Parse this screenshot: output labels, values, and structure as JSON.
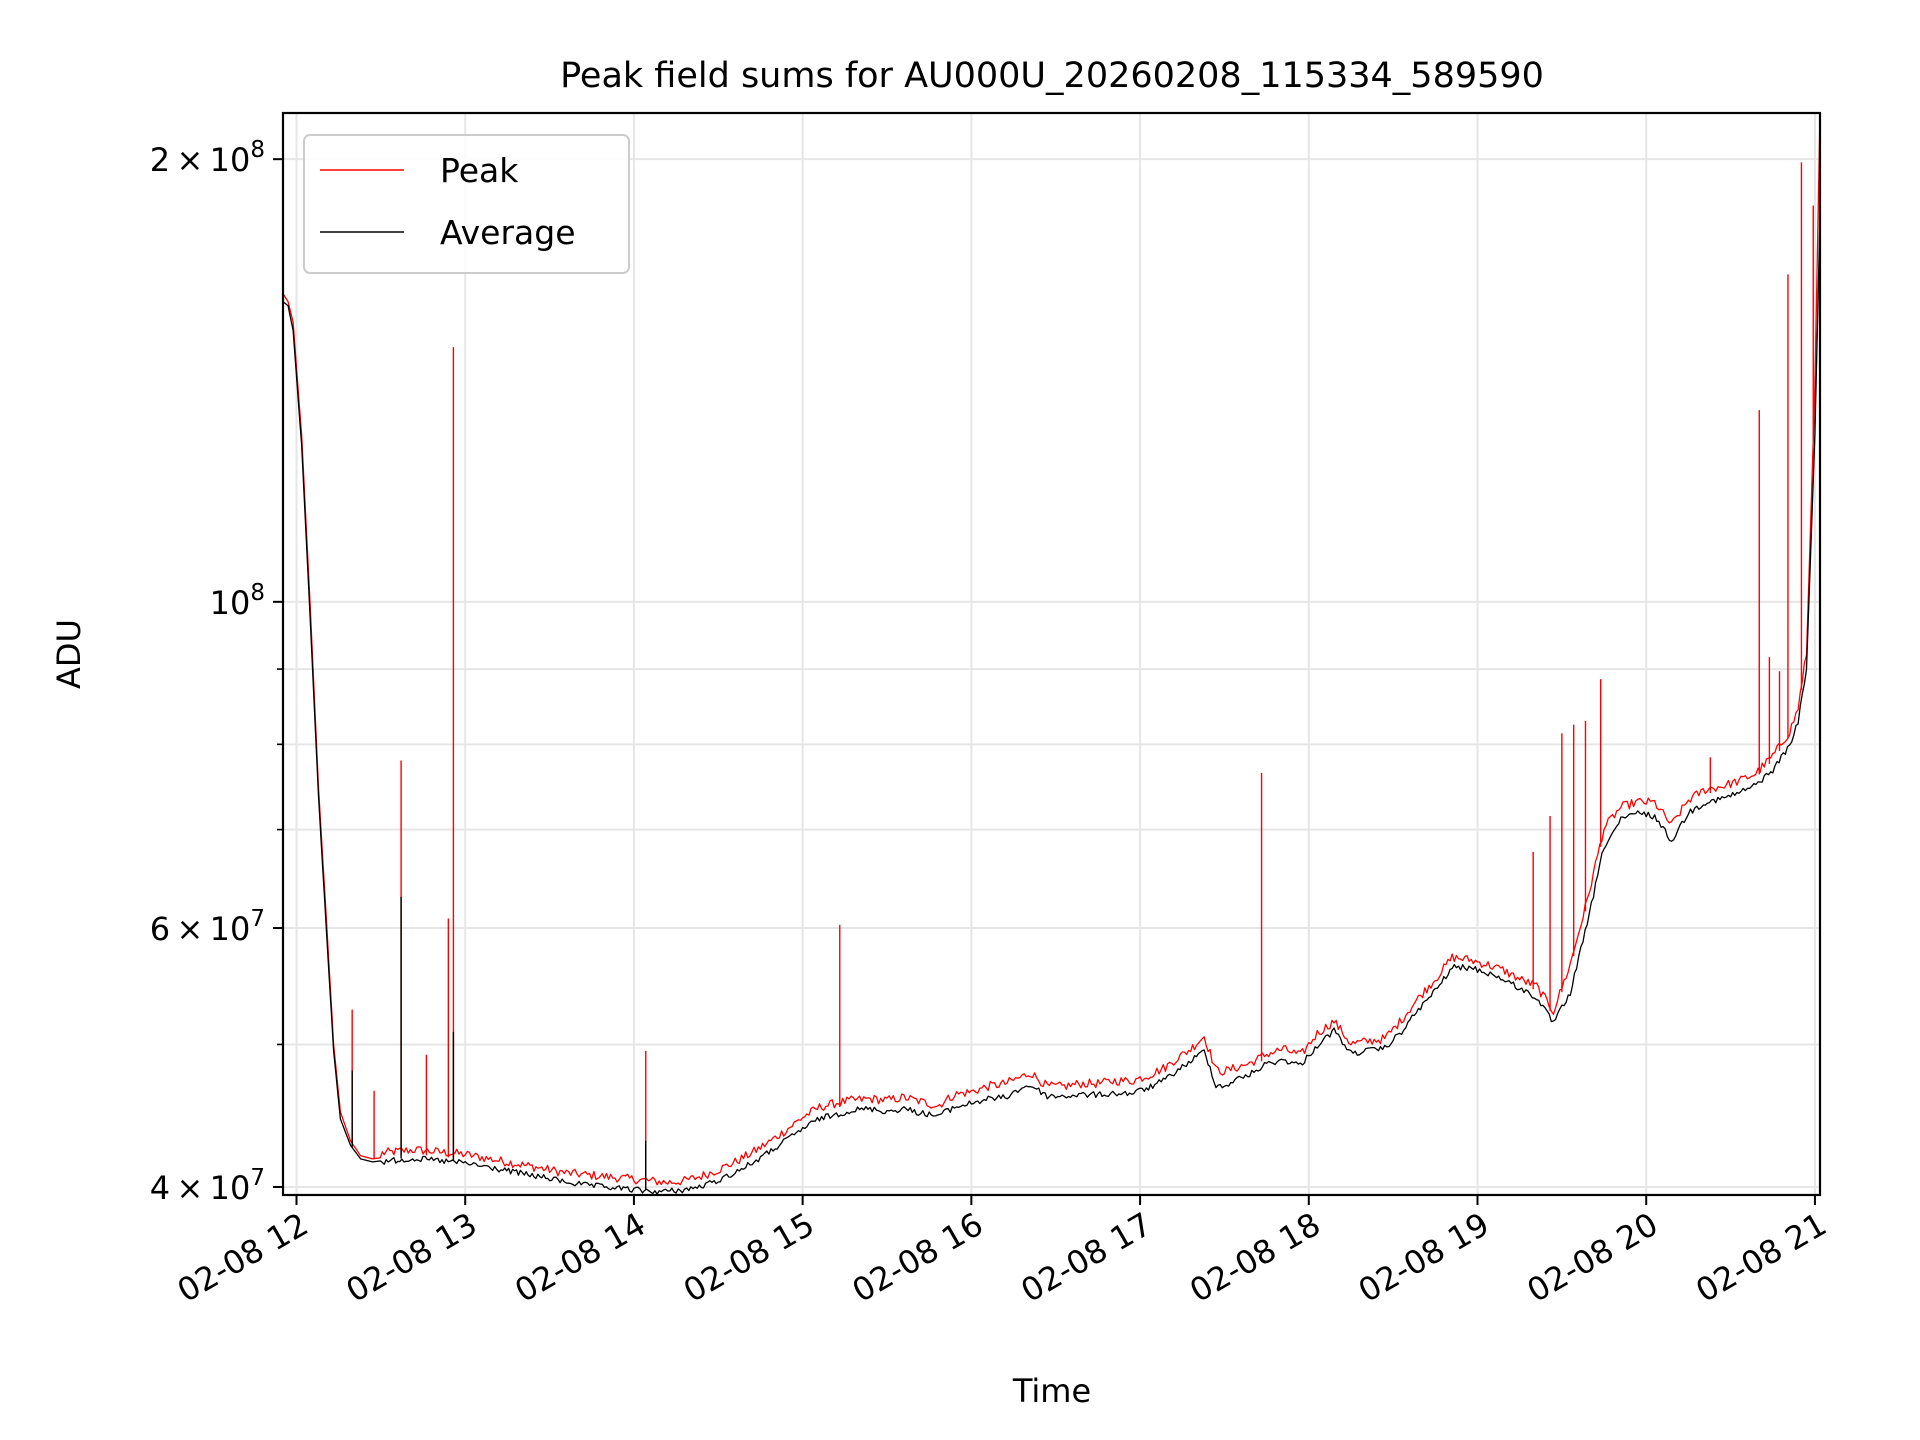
{
  "chart_data": {
    "type": "line",
    "title": "Peak field sums for AU000U_20260208_115334_589590",
    "xlabel": "Time",
    "ylabel": "ADU",
    "yscale": "log",
    "x_unit": "hours since 02-08 00:00",
    "xlim": [
      11.92,
      21.03
    ],
    "ylim": [
      39500000,
      215000000
    ],
    "grid": true,
    "legend_position": "top-left",
    "x_ticks": [
      {
        "value": 12,
        "label": "02-08 12"
      },
      {
        "value": 13,
        "label": "02-08 13"
      },
      {
        "value": 14,
        "label": "02-08 14"
      },
      {
        "value": 15,
        "label": "02-08 15"
      },
      {
        "value": 16,
        "label": "02-08 16"
      },
      {
        "value": 17,
        "label": "02-08 17"
      },
      {
        "value": 18,
        "label": "02-08 18"
      },
      {
        "value": 19,
        "label": "02-08 19"
      },
      {
        "value": 20,
        "label": "02-08 20"
      },
      {
        "value": 21,
        "label": "02-08 21"
      }
    ],
    "y_major_ticks": [
      {
        "value": 40000000,
        "mant": "4",
        "exp": "7"
      },
      {
        "value": 60000000,
        "mant": "6",
        "exp": "7"
      },
      {
        "value": 100000000,
        "mant": "",
        "exp": "8"
      },
      {
        "value": 200000000,
        "mant": "2",
        "exp": "8"
      }
    ],
    "y_minor_ticks": [
      50000000,
      70000000,
      80000000,
      90000000
    ],
    "series": [
      {
        "name": "Peak",
        "color": "#ff0000",
        "x": [
          11.92,
          11.95,
          11.98,
          12.03,
          12.08,
          12.13,
          12.18,
          12.22,
          12.26,
          12.32,
          12.38,
          12.45,
          12.52,
          12.6,
          12.7,
          12.8,
          12.9,
          13.0,
          13.1,
          13.2,
          13.35,
          13.5,
          13.6,
          13.7,
          13.8,
          13.9,
          14.0,
          14.1,
          14.2,
          14.3,
          14.4,
          14.5,
          14.6,
          14.7,
          14.8,
          14.9,
          15.0,
          15.1,
          15.2,
          15.3,
          15.4,
          15.5,
          15.6,
          15.7,
          15.8,
          15.9,
          16.0,
          16.1,
          16.2,
          16.3,
          16.35,
          16.45,
          16.55,
          16.65,
          16.75,
          16.85,
          16.95,
          17.05,
          17.15,
          17.2,
          17.3,
          17.38,
          17.45,
          17.5,
          17.55,
          17.65,
          17.75,
          17.85,
          17.95,
          18.05,
          18.15,
          18.25,
          18.35,
          18.45,
          18.55,
          18.65,
          18.75,
          18.85,
          18.95,
          19.05,
          19.15,
          19.25,
          19.35,
          19.45,
          19.55,
          19.65,
          19.75,
          19.85,
          19.95,
          20.05,
          20.15,
          20.25,
          20.35,
          20.45,
          20.55,
          20.65,
          20.75,
          20.85,
          20.9,
          20.95,
          21.0,
          21.03
        ],
        "y": [
          162000000,
          160000000,
          155000000,
          130000000,
          100000000,
          75000000,
          60000000,
          50000000,
          45000000,
          43000000,
          42000000,
          41800000,
          41900000,
          42000000,
          42100000,
          42000000,
          41900000,
          41800000,
          41600000,
          41400000,
          41100000,
          40800000,
          40600000,
          40500000,
          40400000,
          40300000,
          40200000,
          40100000,
          40000000,
          40100000,
          40400000,
          40800000,
          41300000,
          41900000,
          42600000,
          43400000,
          44300000,
          45000000,
          45300000,
          45500000,
          45600000,
          45500000,
          45700000,
          45400000,
          45100000,
          45900000,
          46100000,
          46500000,
          46700000,
          47200000,
          47500000,
          46500000,
          46500000,
          46700000,
          46700000,
          46900000,
          46900000,
          47300000,
          47900000,
          48400000,
          49300000,
          50300000,
          47700000,
          47600000,
          47800000,
          48200000,
          48900000,
          49300000,
          48800000,
          50500000,
          51500000,
          49700000,
          49900000,
          50100000,
          51600000,
          53400000,
          55000000,
          56900000,
          56700000,
          56300000,
          55800000,
          55000000,
          54400000,
          52300000,
          56300000,
          62200000,
          69700000,
          72000000,
          72600000,
          72500000,
          70000000,
          72800000,
          74000000,
          74400000,
          75000000,
          75900000,
          78000000,
          81000000,
          84000000,
          92000000,
          140000000,
          215000000
        ],
        "spikes": [
          {
            "x": 12.33,
            "y": 52800000
          },
          {
            "x": 12.46,
            "y": 46500000
          },
          {
            "x": 12.62,
            "y": 78000000
          },
          {
            "x": 12.77,
            "y": 49200000
          },
          {
            "x": 12.9,
            "y": 60900000
          },
          {
            "x": 12.93,
            "y": 149000000
          },
          {
            "x": 14.07,
            "y": 49500000
          },
          {
            "x": 15.22,
            "y": 60300000
          },
          {
            "x": 17.72,
            "y": 76500000
          },
          {
            "x": 19.33,
            "y": 67600000
          },
          {
            "x": 19.43,
            "y": 71500000
          },
          {
            "x": 19.5,
            "y": 81400000
          },
          {
            "x": 19.57,
            "y": 82500000
          },
          {
            "x": 19.64,
            "y": 83000000
          },
          {
            "x": 19.73,
            "y": 88600000
          },
          {
            "x": 20.38,
            "y": 78400000
          },
          {
            "x": 20.67,
            "y": 135000000
          },
          {
            "x": 20.73,
            "y": 91700000
          },
          {
            "x": 20.79,
            "y": 89700000
          },
          {
            "x": 20.84,
            "y": 167000000
          },
          {
            "x": 20.92,
            "y": 199000000
          },
          {
            "x": 20.99,
            "y": 186000000
          }
        ]
      },
      {
        "name": "Average",
        "color": "#000000",
        "x": [
          11.92,
          11.95,
          11.98,
          12.03,
          12.08,
          12.13,
          12.18,
          12.22,
          12.26,
          12.32,
          12.38,
          12.45,
          12.52,
          12.6,
          12.7,
          12.8,
          12.9,
          13.0,
          13.1,
          13.2,
          13.35,
          13.5,
          13.6,
          13.7,
          13.8,
          13.9,
          14.0,
          14.1,
          14.2,
          14.3,
          14.4,
          14.5,
          14.6,
          14.7,
          14.8,
          14.9,
          15.0,
          15.1,
          15.2,
          15.3,
          15.4,
          15.5,
          15.6,
          15.7,
          15.8,
          15.9,
          16.0,
          16.1,
          16.2,
          16.3,
          16.35,
          16.45,
          16.55,
          16.65,
          16.75,
          16.85,
          16.95,
          17.05,
          17.15,
          17.2,
          17.3,
          17.38,
          17.45,
          17.5,
          17.55,
          17.65,
          17.75,
          17.85,
          17.95,
          18.05,
          18.15,
          18.25,
          18.35,
          18.45,
          18.55,
          18.65,
          18.75,
          18.85,
          18.95,
          19.05,
          19.15,
          19.25,
          19.35,
          19.45,
          19.55,
          19.65,
          19.75,
          19.85,
          19.95,
          20.05,
          20.15,
          20.25,
          20.35,
          20.45,
          20.55,
          20.65,
          20.75,
          20.85,
          20.9,
          20.95,
          21.0,
          21.03
        ],
        "y": [
          160000000,
          159000000,
          153000000,
          128000000,
          98000000,
          74000000,
          59000000,
          49500000,
          44500000,
          42700000,
          41800000,
          41600000,
          41700000,
          41800000,
          41900000,
          41800000,
          41700000,
          41600000,
          41400000,
          41200000,
          40900000,
          40600000,
          40400000,
          40200000,
          40100000,
          40000000,
          39900000,
          39800000,
          39800000,
          39900000,
          40100000,
          40500000,
          41000000,
          41600000,
          42300000,
          43100000,
          43900000,
          44600000,
          44900000,
          45200000,
          45300000,
          45100000,
          45300000,
          45000000,
          44800000,
          45400000,
          45700000,
          46000000,
          46100000,
          46800000,
          47000000,
          46200000,
          46200000,
          46300000,
          46300000,
          46400000,
          46400000,
          46800000,
          47400000,
          47900000,
          48800000,
          49600000,
          47000000,
          46900000,
          47300000,
          47800000,
          48600000,
          48900000,
          48500000,
          50000000,
          51200000,
          49400000,
          49600000,
          49800000,
          51100000,
          52900000,
          54500000,
          56500000,
          56500000,
          56100000,
          55500000,
          54700000,
          53900000,
          51800000,
          54300000,
          60500000,
          68300000,
          71200000,
          72000000,
          71600000,
          68900000,
          72000000,
          73200000,
          73600000,
          74300000,
          75200000,
          77000000,
          80000000,
          83000000,
          90000000,
          130000000,
          183000000
        ]
      }
    ]
  }
}
